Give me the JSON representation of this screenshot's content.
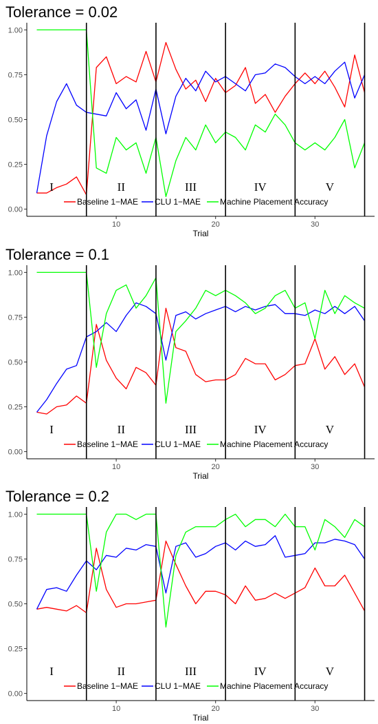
{
  "chart_data": [
    {
      "type": "line",
      "title": "Tolerance = 0.02",
      "xlabel": "Trial",
      "ylabel": "",
      "xlim": [
        1,
        36
      ],
      "ylim": [
        -0.04,
        1.04
      ],
      "x_ticks": [
        10,
        20,
        30
      ],
      "y_ticks": [
        "0.00",
        "0.25",
        "0.50",
        "0.75",
        "1.00"
      ],
      "phase_boundaries": [
        7,
        14,
        21,
        28,
        35
      ],
      "phases": [
        {
          "label": "I",
          "x": 3.5
        },
        {
          "label": "II",
          "x": 10.5
        },
        {
          "label": "III",
          "x": 17.5
        },
        {
          "label": "IV",
          "x": 24.5
        },
        {
          "label": "V",
          "x": 31.5
        }
      ],
      "legend_position": "bottom-inside",
      "x": [
        2,
        3,
        4,
        5,
        6,
        7,
        8,
        9,
        10,
        11,
        12,
        13,
        14,
        15,
        16,
        17,
        18,
        19,
        20,
        21,
        22,
        23,
        24,
        25,
        26,
        27,
        28,
        29,
        30,
        31,
        32,
        33,
        34,
        35
      ],
      "series": [
        {
          "name": "Baseline 1−MAE",
          "color": "#ff0000",
          "values": [
            0.09,
            0.09,
            0.12,
            0.14,
            0.18,
            0.08,
            0.79,
            0.85,
            0.7,
            0.74,
            0.71,
            0.88,
            0.71,
            0.93,
            0.78,
            0.67,
            0.72,
            0.6,
            0.73,
            0.65,
            0.69,
            0.79,
            0.59,
            0.64,
            0.54,
            0.63,
            0.7,
            0.76,
            0.7,
            0.77,
            0.68,
            0.57,
            0.86,
            0.65
          ]
        },
        {
          "name": "CLU 1−MAE",
          "color": "#0000ff",
          "values": [
            0.09,
            0.41,
            0.6,
            0.7,
            0.58,
            0.54,
            0.53,
            0.52,
            0.65,
            0.56,
            0.61,
            0.44,
            0.67,
            0.42,
            0.63,
            0.73,
            0.66,
            0.77,
            0.71,
            0.74,
            0.7,
            0.66,
            0.75,
            0.76,
            0.81,
            0.79,
            0.74,
            0.7,
            0.74,
            0.7,
            0.77,
            0.82,
            0.62,
            0.75
          ]
        },
        {
          "name": "Machine Placement Accuracy",
          "color": "#00ff00",
          "values": [
            1.0,
            1.0,
            1.0,
            1.0,
            1.0,
            1.0,
            0.23,
            0.2,
            0.4,
            0.33,
            0.37,
            0.2,
            0.4,
            0.07,
            0.27,
            0.4,
            0.33,
            0.47,
            0.37,
            0.43,
            0.4,
            0.33,
            0.47,
            0.43,
            0.53,
            0.47,
            0.37,
            0.33,
            0.37,
            0.33,
            0.4,
            0.5,
            0.23,
            0.37
          ]
        }
      ]
    },
    {
      "type": "line",
      "title": "Tolerance = 0.1",
      "xlabel": "Trial",
      "ylabel": "",
      "xlim": [
        1,
        36
      ],
      "ylim": [
        -0.04,
        1.04
      ],
      "x_ticks": [
        10,
        20,
        30
      ],
      "y_ticks": [
        "0.00",
        "0.25",
        "0.50",
        "0.75",
        "1.00"
      ],
      "phase_boundaries": [
        7,
        14,
        21,
        28,
        35
      ],
      "phases": [
        {
          "label": "I",
          "x": 3.5
        },
        {
          "label": "II",
          "x": 10.5
        },
        {
          "label": "III",
          "x": 17.5
        },
        {
          "label": "IV",
          "x": 24.5
        },
        {
          "label": "V",
          "x": 31.5
        }
      ],
      "legend_position": "bottom-inside",
      "x": [
        2,
        3,
        4,
        5,
        6,
        7,
        8,
        9,
        10,
        11,
        12,
        13,
        14,
        15,
        16,
        17,
        18,
        19,
        20,
        21,
        22,
        23,
        24,
        25,
        26,
        27,
        28,
        29,
        30,
        31,
        32,
        33,
        34,
        35
      ],
      "series": [
        {
          "name": "Baseline 1−MAE",
          "color": "#ff0000",
          "values": [
            0.22,
            0.21,
            0.25,
            0.26,
            0.31,
            0.27,
            0.71,
            0.51,
            0.41,
            0.35,
            0.47,
            0.44,
            0.37,
            0.8,
            0.58,
            0.56,
            0.43,
            0.39,
            0.4,
            0.4,
            0.43,
            0.52,
            0.49,
            0.49,
            0.4,
            0.43,
            0.48,
            0.49,
            0.63,
            0.46,
            0.53,
            0.43,
            0.49,
            0.36
          ]
        },
        {
          "name": "CLU 1−MAE",
          "color": "#0000ff",
          "values": [
            0.22,
            0.29,
            0.38,
            0.46,
            0.48,
            0.64,
            0.67,
            0.72,
            0.67,
            0.76,
            0.83,
            0.81,
            0.77,
            0.51,
            0.76,
            0.78,
            0.74,
            0.77,
            0.79,
            0.81,
            0.78,
            0.81,
            0.79,
            0.81,
            0.82,
            0.77,
            0.77,
            0.76,
            0.79,
            0.77,
            0.81,
            0.77,
            0.81,
            0.73
          ]
        },
        {
          "name": "Machine Placement Accuracy",
          "color": "#00ff00",
          "values": [
            1.0,
            1.0,
            1.0,
            1.0,
            1.0,
            1.0,
            0.47,
            0.77,
            0.9,
            0.93,
            0.8,
            0.87,
            0.97,
            0.27,
            0.67,
            0.73,
            0.8,
            0.9,
            0.87,
            0.9,
            0.87,
            0.83,
            0.77,
            0.8,
            0.87,
            0.9,
            0.8,
            0.83,
            0.63,
            0.9,
            0.77,
            0.87,
            0.83,
            0.8
          ]
        }
      ]
    },
    {
      "type": "line",
      "title": "Tolerance = 0.2",
      "xlabel": "Trial",
      "ylabel": "",
      "xlim": [
        1,
        36
      ],
      "ylim": [
        -0.04,
        1.04
      ],
      "x_ticks": [
        10,
        20,
        30
      ],
      "y_ticks": [
        "0.00",
        "0.25",
        "0.50",
        "0.75",
        "1.00"
      ],
      "phase_boundaries": [
        7,
        14,
        21,
        28,
        35
      ],
      "phases": [
        {
          "label": "I",
          "x": 3.5
        },
        {
          "label": "II",
          "x": 10.5
        },
        {
          "label": "III",
          "x": 17.5
        },
        {
          "label": "IV",
          "x": 24.5
        },
        {
          "label": "V",
          "x": 31.5
        }
      ],
      "legend_position": "bottom-inside",
      "x": [
        2,
        3,
        4,
        5,
        6,
        7,
        8,
        9,
        10,
        11,
        12,
        13,
        14,
        15,
        16,
        17,
        18,
        19,
        20,
        21,
        22,
        23,
        24,
        25,
        26,
        27,
        28,
        29,
        30,
        31,
        32,
        33,
        34,
        35
      ],
      "series": [
        {
          "name": "Baseline 1−MAE",
          "color": "#ff0000",
          "values": [
            0.47,
            0.48,
            0.47,
            0.46,
            0.49,
            0.45,
            0.81,
            0.58,
            0.48,
            0.5,
            0.5,
            0.51,
            0.52,
            0.85,
            0.72,
            0.6,
            0.5,
            0.57,
            0.57,
            0.55,
            0.5,
            0.6,
            0.52,
            0.53,
            0.56,
            0.53,
            0.56,
            0.59,
            0.7,
            0.6,
            0.6,
            0.66,
            0.56,
            0.46
          ]
        },
        {
          "name": "CLU 1−MAE",
          "color": "#0000ff",
          "values": [
            0.47,
            0.58,
            0.59,
            0.57,
            0.66,
            0.74,
            0.69,
            0.77,
            0.76,
            0.81,
            0.8,
            0.83,
            0.82,
            0.56,
            0.82,
            0.84,
            0.76,
            0.78,
            0.82,
            0.84,
            0.8,
            0.85,
            0.82,
            0.83,
            0.88,
            0.76,
            0.77,
            0.78,
            0.84,
            0.84,
            0.86,
            0.85,
            0.83,
            0.75
          ]
        },
        {
          "name": "Machine Placement Accuracy",
          "color": "#00ff00",
          "values": [
            1.0,
            1.0,
            1.0,
            1.0,
            1.0,
            1.0,
            0.57,
            0.9,
            1.0,
            1.0,
            0.97,
            1.0,
            1.0,
            0.37,
            0.77,
            0.9,
            0.93,
            0.93,
            0.93,
            0.97,
            1.0,
            0.93,
            0.97,
            0.97,
            0.93,
            1.0,
            0.93,
            0.93,
            0.8,
            0.97,
            0.93,
            0.87,
            0.97,
            0.93
          ]
        }
      ]
    }
  ]
}
